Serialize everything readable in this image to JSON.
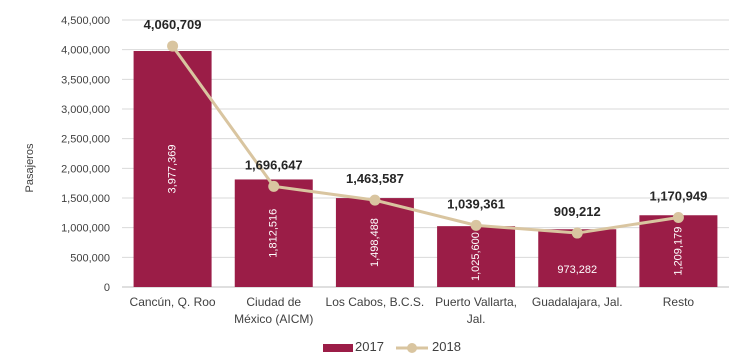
{
  "chart_data": {
    "type": "bar",
    "title": "",
    "ylabel": "Pasajeros",
    "xlabel": "",
    "ylim": [
      0,
      4500000
    ],
    "ytick_step": 500000,
    "categories": [
      "Cancún, Q. Roo",
      "Ciudad de México (AICM)",
      "Los Cabos, B.C.S.",
      "Puerto Vallarta, Jal.",
      "Guadalajara, Jal.",
      "Resto"
    ],
    "category_lines": [
      [
        "Cancún, Q. Roo"
      ],
      [
        "Ciudad de",
        "México (AICM)"
      ],
      [
        "Los Cabos, B.C.S."
      ],
      [
        "Puerto Vallarta,",
        "Jal."
      ],
      [
        "Guadalajara, Jal."
      ],
      [
        "Resto"
      ]
    ],
    "series": [
      {
        "name": "2017",
        "type": "bar",
        "color": "#9b1d47",
        "values": [
          3977369,
          1812516,
          1498488,
          1025600,
          973282,
          1209179
        ],
        "labels": [
          "3,977,369",
          "1,812,516",
          "1,498,488",
          "1,025,600",
          "973,282",
          "1,209,179"
        ]
      },
      {
        "name": "2018",
        "type": "line",
        "color": "#d9c5a0",
        "values": [
          4060709,
          1696647,
          1463587,
          1039361,
          909212,
          1170949
        ],
        "labels": [
          "4,060,709",
          "1,696,647",
          "1,463,587",
          "1,039,361",
          "909,212",
          "1,170,949"
        ]
      }
    ],
    "legend": {
      "position": "bottom"
    },
    "grid": true
  }
}
